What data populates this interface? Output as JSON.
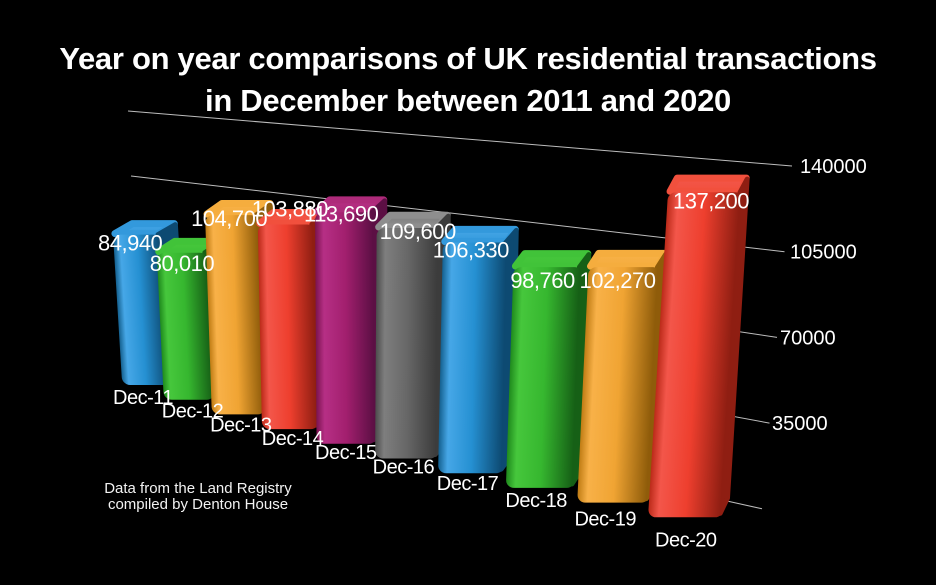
{
  "title": {
    "line1": "Year on year comparisons of UK residential transactions",
    "line2": "in December between 2011 and 2020"
  },
  "source_note": {
    "line1": "Data from the Land Registry",
    "line2": "compiled by Denton House"
  },
  "chart_data": {
    "type": "bar",
    "style": "3d-perspective",
    "title": "Year on year comparisons of UK residential transactions in December between 2011 and 2020",
    "categories": [
      "Dec-11",
      "Dec-12",
      "Dec-13",
      "Dec-14",
      "Dec-15",
      "Dec-16",
      "Dec-17",
      "Dec-18",
      "Dec-19",
      "Dec-20"
    ],
    "values": [
      84940,
      80010,
      104700,
      103880,
      113690,
      109600,
      106330,
      98760,
      102270,
      137200
    ],
    "value_labels": [
      "84,940",
      "80,010",
      "104,700",
      "103,880",
      "113,690",
      "109,600",
      "106,330",
      "98,760",
      "102,270",
      "137,200"
    ],
    "xlabel": "",
    "ylabel": "",
    "yticks": [
      140000,
      105000,
      70000,
      35000
    ],
    "ytick_labels": [
      "140000",
      "105000",
      "70000",
      "35000"
    ],
    "ylim": [
      0,
      140000
    ],
    "grid": true,
    "legend": false,
    "background": "#000000",
    "text_color": "#ffffff",
    "gridline_color": "#bdbdbd",
    "source_note": "Data from the Land Registry compiled by Denton House",
    "color_cycle": [
      "blue",
      "green",
      "orange",
      "red",
      "purple",
      "gray",
      "blue",
      "green",
      "orange",
      "red"
    ],
    "palette": {
      "blue": {
        "light": "#46a7e7",
        "mid": "#2590d2",
        "dark": "#14608f",
        "side": "#0d4a72",
        "top": "#3399dc"
      },
      "green": {
        "light": "#46c73c",
        "mid": "#36b72f",
        "dark": "#1f8a1d",
        "side": "#166016",
        "top": "#41c339"
      },
      "orange": {
        "light": "#f8b148",
        "mid": "#f0a433",
        "dark": "#c07c14",
        "side": "#8f5c0a",
        "top": "#f5ad3e"
      },
      "red": {
        "light": "#f3564a",
        "mid": "#ee3f2e",
        "dark": "#bb2a19",
        "side": "#8f1e12",
        "top": "#f1503d"
      },
      "purple": {
        "light": "#b62f85",
        "mid": "#a21f6e",
        "dark": "#7a134f",
        "side": "#5c0f44",
        "top": "#ae2a7a"
      },
      "gray": {
        "light": "#7e7e7e",
        "mid": "#676767",
        "dark": "#4c4c4c",
        "side": "#3c3c3c",
        "top": "#8e8e8e"
      }
    }
  }
}
